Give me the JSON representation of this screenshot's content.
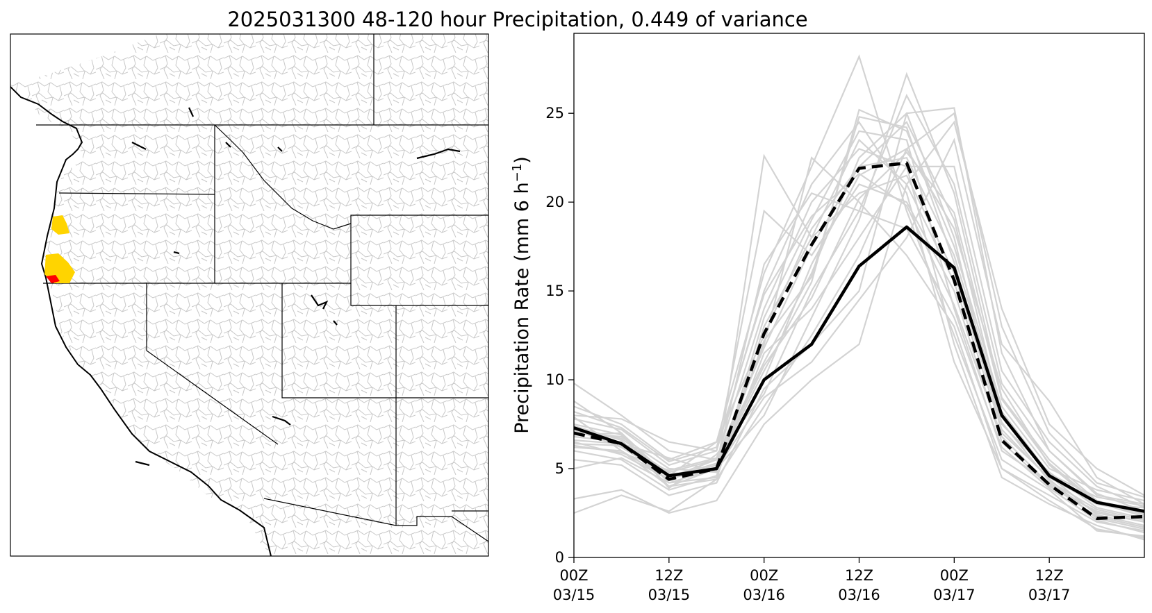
{
  "title": "2025031300 48-120 hour Precipitation, 0.449 of variance",
  "colors": {
    "ensemble": "#d3d3d3",
    "mean": "#000000",
    "highlight_high": "#ffd400",
    "highlight_max": "#ff0000",
    "boundaries": "#000000",
    "basins": "#c8c8c8"
  },
  "map_panel": {
    "type": "map",
    "region": "Western United States",
    "highlighted_regions": [
      {
        "area": "Southern Oregon coast",
        "color": "highlight_high"
      },
      {
        "area": "Northern California coast",
        "color": "highlight_high"
      },
      {
        "area": "Oregon/California border coast",
        "color": "highlight_max"
      }
    ]
  },
  "chart_data": {
    "type": "line",
    "ylabel": "Precipitation Rate (mm 6 h",
    "ylabel_sup": "−1",
    "ylabel_close": ")",
    "ylim": [
      0,
      29.5
    ],
    "yticks": [
      0,
      5,
      10,
      15,
      20,
      25
    ],
    "x": [
      0,
      6,
      12,
      18,
      24,
      30,
      36,
      42,
      48,
      54,
      60,
      66,
      72
    ],
    "xlim": [
      0,
      72
    ],
    "xticks": [
      {
        "x": 0,
        "line1": "00Z",
        "line2": "03/15"
      },
      {
        "x": 12,
        "line1": "12Z",
        "line2": "03/15"
      },
      {
        "x": 24,
        "line1": "00Z",
        "line2": "03/16"
      },
      {
        "x": 36,
        "line1": "12Z",
        "line2": "03/16"
      },
      {
        "x": 48,
        "line1": "00Z",
        "line2": "03/17"
      },
      {
        "x": 60,
        "line1": "12Z",
        "line2": "03/17"
      }
    ],
    "series": [
      {
        "style": "solid-black",
        "values": [
          7.3,
          6.4,
          4.6,
          5.0,
          10.0,
          12.0,
          16.4,
          18.6,
          16.3,
          8.0,
          4.6,
          3.1,
          2.6
        ]
      },
      {
        "style": "dashed-black",
        "values": [
          7.0,
          6.4,
          4.4,
          5.0,
          12.6,
          17.6,
          21.9,
          22.2,
          15.6,
          6.6,
          4.1,
          2.2,
          2.3
        ]
      }
    ],
    "ensemble_members": [
      [
        6.8,
        6.5,
        4.8,
        5.5,
        11.0,
        16.0,
        22.5,
        25.0,
        18.0,
        7.0,
        4.5,
        3.0,
        2.8
      ],
      [
        7.5,
        6.9,
        4.2,
        4.5,
        13.5,
        19.0,
        24.0,
        23.5,
        14.0,
        6.0,
        4.2,
        2.5,
        2.0
      ],
      [
        8.5,
        7.5,
        5.5,
        6.5,
        16.0,
        22.0,
        28.2,
        19.5,
        12.5,
        5.5,
        3.8,
        1.5,
        1.2
      ],
      [
        6.2,
        6.0,
        4.0,
        5.0,
        8.0,
        13.5,
        19.0,
        27.2,
        20.5,
        9.0,
        5.5,
        3.2,
        2.4
      ],
      [
        7.0,
        6.8,
        5.0,
        4.8,
        22.6,
        18.0,
        20.5,
        21.5,
        16.0,
        7.5,
        4.8,
        2.8,
        2.2
      ],
      [
        5.5,
        5.2,
        3.5,
        4.2,
        9.5,
        12.0,
        15.0,
        25.0,
        25.3,
        11.5,
        6.0,
        3.5,
        3.0
      ],
      [
        9.8,
        8.0,
        6.0,
        5.5,
        12.0,
        22.5,
        20.0,
        17.0,
        13.0,
        5.0,
        3.5,
        2.0,
        1.5
      ],
      [
        6.5,
        5.8,
        4.4,
        5.2,
        10.5,
        15.5,
        25.2,
        24.0,
        17.5,
        8.5,
        5.0,
        3.8,
        3.2
      ],
      [
        7.8,
        7.2,
        5.2,
        6.0,
        19.5,
        17.0,
        21.0,
        20.0,
        15.0,
        6.5,
        4.0,
        2.6,
        2.0
      ],
      [
        3.3,
        3.8,
        2.5,
        3.2,
        7.5,
        10.0,
        12.0,
        21.0,
        24.5,
        14.0,
        7.5,
        5.0,
        3.5
      ],
      [
        8.8,
        7.0,
        4.5,
        5.5,
        14.0,
        20.0,
        23.0,
        22.0,
        12.0,
        4.5,
        3.0,
        1.8,
        1.0
      ],
      [
        6.0,
        5.5,
        3.8,
        4.6,
        11.5,
        14.0,
        18.0,
        22.0,
        22.0,
        10.5,
        6.5,
        4.0,
        2.8
      ],
      [
        7.2,
        6.2,
        4.6,
        6.5,
        12.5,
        18.5,
        22.0,
        24.5,
        19.0,
        8.0,
        4.6,
        2.4,
        1.8
      ],
      [
        5.0,
        5.6,
        4.2,
        5.0,
        9.0,
        11.0,
        14.5,
        18.0,
        23.5,
        12.0,
        8.8,
        4.5,
        3.0
      ],
      [
        8.0,
        7.8,
        6.5,
        6.0,
        15.0,
        21.0,
        24.5,
        20.5,
        11.0,
        5.0,
        3.2,
        1.6,
        1.1
      ],
      [
        6.6,
        6.4,
        5.6,
        4.8,
        10.0,
        16.5,
        21.5,
        23.0,
        18.5,
        9.5,
        5.2,
        3.0,
        2.5
      ],
      [
        7.4,
        6.6,
        4.0,
        4.4,
        13.0,
        18.0,
        23.5,
        21.0,
        15.5,
        7.2,
        4.4,
        2.2,
        1.6
      ],
      [
        6.9,
        7.0,
        3.9,
        5.8,
        9.2,
        15.0,
        19.5,
        26.0,
        21.0,
        9.8,
        6.0,
        3.6,
        2.6
      ],
      [
        2.5,
        3.5,
        2.6,
        4.4,
        8.5,
        12.5,
        17.0,
        23.0,
        25.0,
        13.0,
        7.0,
        4.2,
        3.4
      ],
      [
        7.9,
        6.0,
        4.4,
        5.2,
        16.5,
        20.5,
        19.5,
        18.5,
        13.5,
        6.2,
        3.9,
        2.1,
        1.4
      ],
      [
        6.3,
        5.9,
        4.9,
        5.6,
        11.8,
        17.5,
        22.0,
        22.5,
        17.0,
        8.2,
        4.7,
        3.4,
        2.9
      ],
      [
        7.1,
        6.7,
        4.7,
        4.9,
        12.2,
        15.8,
        24.8,
        24.2,
        16.6,
        7.6,
        4.3,
        2.7,
        2.1
      ],
      [
        6.4,
        6.3,
        4.5,
        5.3,
        10.8,
        14.6,
        20.2,
        22.8,
        19.4,
        8.9,
        5.3,
        3.1,
        2.3
      ],
      [
        8.2,
        7.3,
        5.4,
        6.2,
        14.8,
        19.2,
        21.6,
        19.8,
        14.2,
        6.8,
        4.1,
        2.3,
        1.7
      ]
    ]
  }
}
